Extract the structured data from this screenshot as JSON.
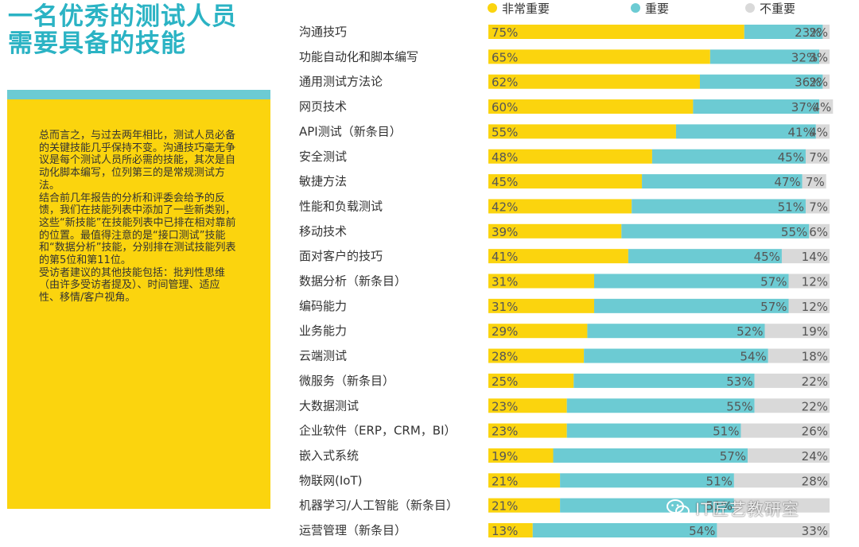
{
  "headline": {
    "line1": "一名优秀的测试人员",
    "line2": "需要具备的技能"
  },
  "summary": {
    "paragraphs": [
      "总而言之，与过去两年相比，测试人员必备的关键技能几乎保持不变。沟通技巧毫无争议是每个测试人员所必需的技能，其次是自动化脚本编写，位列第三的是常规测试方法。",
      "结合前几年报告的分析和评委会给予的反馈，我们在技能列表中添加了一些新类别，这些“新技能”在技能列表中已排在相对靠前的位置。最值得注意的是“接口测试”技能和“数据分析”技能，分别排在测试技能列表的第5位和第11位。",
      "受访者建议的其他技能包括：批判性思维（由许多受访者提及）、时间管理、适应性、移情/客户视角。"
    ]
  },
  "legend": {
    "very_important": "非常重要",
    "important": "重要",
    "not_important": "不重要"
  },
  "colors": {
    "very_important": "#fbd40e",
    "important": "#6ccbd3",
    "not_important": "#d9d9d9",
    "title": "#2bb3c4"
  },
  "watermark": {
    "text": "IT匠艺教研室"
  },
  "chart_data": {
    "type": "bar",
    "orientation": "horizontal",
    "stacked": true,
    "unit": "%",
    "categories": [
      "沟通技巧",
      "功能自动化和脚本编写",
      "通用测试方法论",
      "网页技术",
      "API测试（新条目）",
      "安全测试",
      "敏捷方法",
      "性能和负载测试",
      "移动技术",
      "面对客户的技巧",
      "数据分析（新条目）",
      "编码能力",
      "业务能力",
      "云端测试",
      "微服务（新条目）",
      "大数据测试",
      "企业软件（ERP，CRM，BI）",
      "嵌入式系统",
      "物联网(IoT)",
      "机器学习/人工智能（新条目）",
      "运营管理（新条目）"
    ],
    "series": [
      {
        "name": "非常重要",
        "values": [
          75,
          65,
          62,
          60,
          55,
          48,
          45,
          42,
          39,
          41,
          31,
          31,
          29,
          28,
          25,
          23,
          23,
          19,
          21,
          21,
          13
        ],
        "labels": [
          "75%",
          "65%",
          "62%",
          "60%",
          "55%",
          "48%",
          "45%",
          "42%",
          "39%",
          "41%",
          "31%",
          "31%",
          "29%",
          "28%",
          "25%",
          "23%",
          "23%",
          "19%",
          "21%",
          "21%",
          "13%"
        ]
      },
      {
        "name": "重要",
        "values": [
          23,
          32,
          36,
          37,
          41,
          45,
          47,
          51,
          55,
          45,
          57,
          57,
          52,
          54,
          53,
          55,
          51,
          57,
          51,
          51,
          54
        ],
        "labels": [
          "23%",
          "32%",
          "36%",
          "37%",
          "41%",
          "45%",
          "47%",
          "51%",
          "55%",
          "45%",
          "57%",
          "57%",
          "52%",
          "54%",
          "53%",
          "55%",
          "51%",
          "57%",
          "51%",
          "51%",
          "54%"
        ]
      },
      {
        "name": "不重要",
        "values": [
          2,
          3,
          2,
          4,
          4,
          7,
          7,
          7,
          6,
          14,
          12,
          12,
          19,
          18,
          22,
          22,
          26,
          24,
          28,
          28,
          33
        ],
        "labels": [
          "2%",
          "3%",
          "2%",
          "4%",
          "4%",
          "7%",
          "7%",
          "7%",
          "6%",
          "14%",
          "12%",
          "12%",
          "19%",
          "18%",
          "22%",
          "22%",
          "26%",
          "24%",
          "28%",
          "",
          "33%"
        ]
      }
    ],
    "xlim": [
      0,
      100
    ]
  }
}
